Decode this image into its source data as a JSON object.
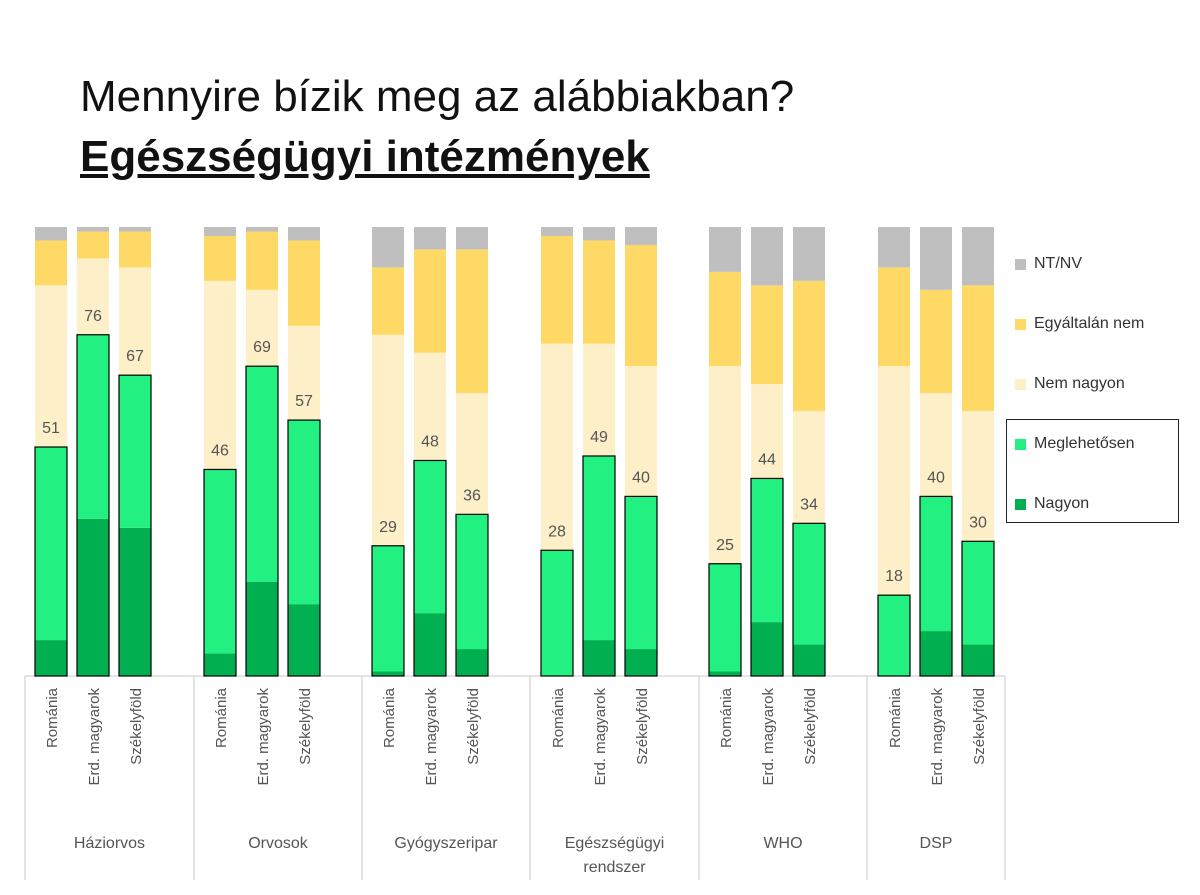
{
  "title": "Mennyire bízik meg az alábbiakban?",
  "subtitle": "Egészségügyi intézmények",
  "chart_data": {
    "type": "bar",
    "stacked": true,
    "ylim": [
      0,
      100
    ],
    "series_names": [
      "Nagyon",
      "Meglehetősen",
      "Nem nagyon",
      "Egyáltalán nem",
      "NT/NV"
    ],
    "colors": {
      "Nagyon": "#00b050",
      "Meglehetősen": "#22f080",
      "Nem nagyon": "#fdefc8",
      "Egyáltalán nem": "#ffd966",
      "NT/NV": "#bfbfbf"
    },
    "legend": {
      "entries": [
        "NT/NV",
        "Egyáltalán nem",
        "Nem nagyon",
        "Meglehetősen",
        "Nagyon"
      ],
      "placement": "right"
    },
    "subgroup_labels": [
      "Románia",
      "Erd. magyarok",
      "Székelyföld"
    ],
    "groups": [
      {
        "label": "Háziorvos",
        "bars": [
          {
            "sub": "Románia",
            "nagyon": 8,
            "meglehetosen": 43,
            "nem_nagyon": 36,
            "egyaltalan": 10,
            "ntnv": 3,
            "label": "51"
          },
          {
            "sub": "Erd. magyarok",
            "nagyon": 35,
            "meglehetosen": 41,
            "nem_nagyon": 17,
            "egyaltalan": 6,
            "ntnv": 1,
            "label": "76"
          },
          {
            "sub": "Székelyföld",
            "nagyon": 33,
            "meglehetosen": 34,
            "nem_nagyon": 24,
            "egyaltalan": 8,
            "ntnv": 1,
            "label": "67"
          }
        ]
      },
      {
        "label": "Orvosok",
        "bars": [
          {
            "sub": "Románia",
            "nagyon": 5,
            "meglehetosen": 41,
            "nem_nagyon": 42,
            "egyaltalan": 10,
            "ntnv": 2,
            "label": "46"
          },
          {
            "sub": "Erd. magyarok",
            "nagyon": 21,
            "meglehetosen": 48,
            "nem_nagyon": 17,
            "egyaltalan": 13,
            "ntnv": 1,
            "label": "69"
          },
          {
            "sub": "Székelyföld",
            "nagyon": 16,
            "meglehetosen": 41,
            "nem_nagyon": 21,
            "egyaltalan": 19,
            "ntnv": 3,
            "label": "57"
          }
        ]
      },
      {
        "label": "Gyógyszeripar",
        "bars": [
          {
            "sub": "Románia",
            "nagyon": 1,
            "meglehetosen": 28,
            "nem_nagyon": 47,
            "egyaltalan": 15,
            "ntnv": 9,
            "label": "29"
          },
          {
            "sub": "Erd. magyarok",
            "nagyon": 14,
            "meglehetosen": 34,
            "nem_nagyon": 24,
            "egyaltalan": 23,
            "ntnv": 5,
            "label": "48"
          },
          {
            "sub": "Székelyföld",
            "nagyon": 6,
            "meglehetosen": 30,
            "nem_nagyon": 27,
            "egyaltalan": 32,
            "ntnv": 5,
            "label": "36"
          }
        ]
      },
      {
        "label": "Egészségügyi\nrendszer",
        "bars": [
          {
            "sub": "Románia",
            "nagyon": 0,
            "meglehetosen": 28,
            "nem_nagyon": 46,
            "egyaltalan": 24,
            "ntnv": 2,
            "label": "28"
          },
          {
            "sub": "Erd. magyarok",
            "nagyon": 8,
            "meglehetosen": 41,
            "nem_nagyon": 25,
            "egyaltalan": 23,
            "ntnv": 3,
            "label": "49"
          },
          {
            "sub": "Székelyföld",
            "nagyon": 6,
            "meglehetosen": 34,
            "nem_nagyon": 29,
            "egyaltalan": 27,
            "ntnv": 4,
            "label": "40"
          }
        ]
      },
      {
        "label": "WHO",
        "bars": [
          {
            "sub": "Románia",
            "nagyon": 1,
            "meglehetosen": 24,
            "nem_nagyon": 44,
            "egyaltalan": 21,
            "ntnv": 10,
            "label": "25"
          },
          {
            "sub": "Erd. magyarok",
            "nagyon": 12,
            "meglehetosen": 32,
            "nem_nagyon": 21,
            "egyaltalan": 22,
            "ntnv": 13,
            "label": "44"
          },
          {
            "sub": "Székelyföld",
            "nagyon": 7,
            "meglehetosen": 27,
            "nem_nagyon": 25,
            "egyaltalan": 29,
            "ntnv": 12,
            "label": "34"
          }
        ]
      },
      {
        "label": "DSP",
        "bars": [
          {
            "sub": "Románia",
            "nagyon": 0,
            "meglehetosen": 18,
            "nem_nagyon": 51,
            "egyaltalan": 22,
            "ntnv": 9,
            "label": "18"
          },
          {
            "sub": "Erd. magyarok",
            "nagyon": 10,
            "meglehetosen": 30,
            "nem_nagyon": 23,
            "egyaltalan": 23,
            "ntnv": 14,
            "label": "40"
          },
          {
            "sub": "Székelyföld",
            "nagyon": 7,
            "meglehetosen": 23,
            "nem_nagyon": 29,
            "egyaltalan": 28,
            "ntnv": 13,
            "label": "30"
          }
        ]
      }
    ]
  }
}
